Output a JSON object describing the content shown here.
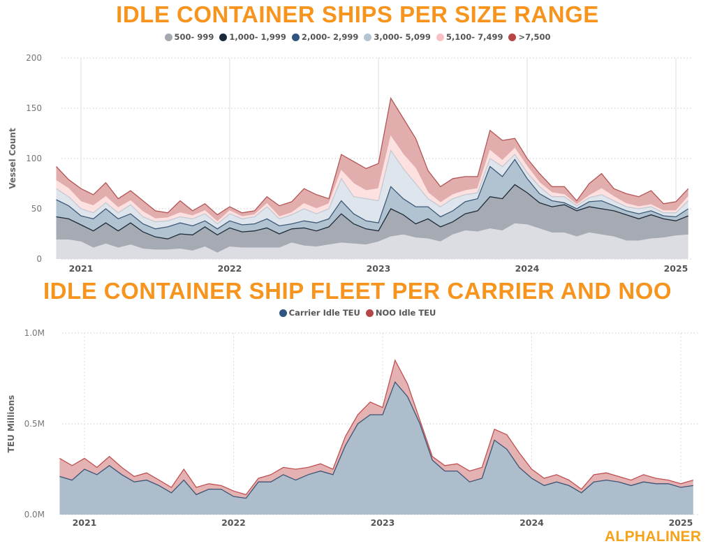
{
  "chart_data": [
    {
      "type": "area",
      "stacked": true,
      "title": "IDLE CONTAINER SHIPS PER SIZE RANGE",
      "xlabel": "",
      "ylabel": "Vessel Count",
      "ylim": [
        0,
        200
      ],
      "y_ticks": [
        "0",
        "50",
        "100",
        "150",
        "200"
      ],
      "y_tick_values": [
        0,
        50,
        100,
        150,
        200
      ],
      "x_ticks": [
        "2021",
        "2022",
        "2023",
        "2024",
        "2025"
      ],
      "grid": true,
      "legend_placement": "top",
      "x": [
        "2020-11",
        "2020-12",
        "2021-01",
        "2021-02",
        "2021-03",
        "2021-04",
        "2021-05",
        "2021-06",
        "2021-07",
        "2021-08",
        "2021-09",
        "2021-10",
        "2021-11",
        "2021-12",
        "2022-01",
        "2022-02",
        "2022-03",
        "2022-04",
        "2022-05",
        "2022-06",
        "2022-07",
        "2022-08",
        "2022-09",
        "2022-10",
        "2022-11",
        "2022-12",
        "2023-01",
        "2023-02",
        "2023-03",
        "2023-04",
        "2023-05",
        "2023-06",
        "2023-07",
        "2023-08",
        "2023-09",
        "2023-10",
        "2023-11",
        "2023-12",
        "2024-01",
        "2024-02",
        "2024-03",
        "2024-04",
        "2024-05",
        "2024-06",
        "2024-07",
        "2024-08",
        "2024-09",
        "2024-10",
        "2024-11",
        "2024-12",
        "2025-01",
        "2025-02"
      ],
      "series": [
        {
          "name": "500- 999",
          "color": "#a5a8b0",
          "fill": "#dcdde2",
          "line": "#dcdde2",
          "values": [
            19,
            19,
            17,
            11,
            15,
            11,
            14,
            10,
            9,
            9,
            10,
            8,
            12,
            6,
            12,
            11,
            11,
            11,
            11,
            16,
            13,
            12,
            14,
            16,
            15,
            14,
            17,
            22,
            24,
            21,
            20,
            17,
            24,
            28,
            27,
            30,
            28,
            35,
            34,
            30,
            26,
            26,
            22,
            26,
            24,
            22,
            18,
            18,
            20,
            21,
            23,
            24
          ]
        },
        {
          "name": "1,000- 1,999",
          "color": "#1b2a3a",
          "fill": "#a6aab3",
          "line": "#1d2b3a",
          "values": [
            23,
            21,
            17,
            17,
            21,
            17,
            22,
            17,
            13,
            11,
            15,
            16,
            20,
            18,
            19,
            16,
            17,
            20,
            14,
            14,
            18,
            16,
            18,
            29,
            20,
            16,
            11,
            28,
            20,
            14,
            20,
            15,
            13,
            17,
            21,
            32,
            32,
            39,
            32,
            26,
            26,
            28,
            26,
            26,
            26,
            26,
            26,
            22,
            24,
            19,
            15,
            19
          ]
        },
        {
          "name": "2,000- 2,999",
          "color": "#2f5580",
          "fill": "#b1c2d0",
          "line": "#3d5a78",
          "values": [
            17,
            13,
            9,
            12,
            14,
            12,
            9,
            8,
            8,
            12,
            11,
            9,
            6,
            6,
            7,
            7,
            7,
            9,
            8,
            5,
            7,
            8,
            8,
            13,
            10,
            8,
            8,
            22,
            16,
            17,
            12,
            10,
            11,
            12,
            12,
            30,
            22,
            25,
            14,
            9,
            6,
            2,
            2,
            5,
            8,
            5,
            4,
            5,
            4,
            3,
            4,
            7
          ]
        },
        {
          "name": "3,000- 5,099",
          "color": "#b4c4d3",
          "fill": "#dfe5ec",
          "line": "#c3cad3",
          "values": [
            11,
            9,
            7,
            6,
            6,
            6,
            9,
            7,
            7,
            6,
            6,
            7,
            7,
            5,
            7,
            6,
            7,
            12,
            7,
            9,
            12,
            9,
            10,
            22,
            17,
            22,
            22,
            36,
            30,
            23,
            8,
            10,
            12,
            7,
            6,
            8,
            10,
            5,
            6,
            7,
            4,
            6,
            3,
            4,
            6,
            5,
            4,
            5,
            4,
            3,
            4,
            8
          ]
        },
        {
          "name": "5,100- 7,499",
          "color": "#f8c0c2",
          "fill": "#fde0e0",
          "line": "#fde0e0",
          "values": [
            8,
            8,
            7,
            7,
            6,
            5,
            4,
            5,
            3,
            3,
            4,
            3,
            3,
            2,
            3,
            2,
            2,
            3,
            2,
            2,
            5,
            5,
            5,
            8,
            13,
            8,
            12,
            14,
            14,
            15,
            6,
            4,
            4,
            4,
            4,
            8,
            6,
            6,
            6,
            4,
            4,
            2,
            1,
            2,
            6,
            4,
            3,
            2,
            2,
            2,
            2,
            4
          ]
        },
        {
          "name": ">7,500",
          "color": "#b84545",
          "fill": "#e2adad",
          "line": "#b35555",
          "values": [
            14,
            9,
            13,
            11,
            14,
            9,
            10,
            11,
            8,
            5,
            12,
            5,
            7,
            7,
            4,
            4,
            4,
            7,
            11,
            11,
            15,
            14,
            5,
            16,
            22,
            22,
            25,
            38,
            36,
            30,
            22,
            16,
            16,
            14,
            12,
            20,
            20,
            10,
            8,
            9,
            6,
            8,
            4,
            12,
            15,
            8,
            10,
            10,
            14,
            7,
            9,
            8
          ]
        }
      ]
    },
    {
      "type": "area",
      "stacked": true,
      "title": "IDLE CONTAINER SHIP FLEET PER CARRIER AND NOO",
      "xlabel": "",
      "ylabel": "TEU Millions",
      "ylim": [
        0,
        1.0
      ],
      "y_ticks": [
        "0.0M",
        "0.5M",
        "1.0M"
      ],
      "y_tick_values": [
        0,
        0.5,
        1.0
      ],
      "x_ticks": [
        "2021",
        "2022",
        "2023",
        "2024",
        "2025"
      ],
      "grid": true,
      "legend_placement": "top",
      "x": [
        "2020-11",
        "2020-12",
        "2021-01",
        "2021-02",
        "2021-03",
        "2021-04",
        "2021-05",
        "2021-06",
        "2021-07",
        "2021-08",
        "2021-09",
        "2021-10",
        "2021-11",
        "2021-12",
        "2022-01",
        "2022-02",
        "2022-03",
        "2022-04",
        "2022-05",
        "2022-06",
        "2022-07",
        "2022-08",
        "2022-09",
        "2022-10",
        "2022-11",
        "2022-12",
        "2023-01",
        "2023-02",
        "2023-03",
        "2023-04",
        "2023-05",
        "2023-06",
        "2023-07",
        "2023-08",
        "2023-09",
        "2023-10",
        "2023-11",
        "2023-12",
        "2024-01",
        "2024-02",
        "2024-03",
        "2024-04",
        "2024-05",
        "2024-06",
        "2024-07",
        "2024-08",
        "2024-09",
        "2024-10",
        "2024-11",
        "2024-12",
        "2025-01",
        "2025-02"
      ],
      "series": [
        {
          "name": "Carrier Idle TEU",
          "color": "#2f5580",
          "fill": "#aebdcb",
          "line": "#3b5475",
          "values": [
            0.21,
            0.19,
            0.25,
            0.22,
            0.27,
            0.22,
            0.18,
            0.19,
            0.16,
            0.12,
            0.19,
            0.11,
            0.14,
            0.14,
            0.1,
            0.09,
            0.18,
            0.18,
            0.22,
            0.19,
            0.22,
            0.24,
            0.22,
            0.38,
            0.5,
            0.55,
            0.55,
            0.73,
            0.65,
            0.5,
            0.3,
            0.24,
            0.24,
            0.18,
            0.2,
            0.41,
            0.36,
            0.26,
            0.2,
            0.16,
            0.18,
            0.16,
            0.12,
            0.18,
            0.19,
            0.18,
            0.16,
            0.18,
            0.17,
            0.17,
            0.15,
            0.16
          ]
        },
        {
          "name": "NOO Idle TEU",
          "color": "#b84545",
          "fill": "#e4b2b2",
          "line": "#c05050",
          "values": [
            0.1,
            0.08,
            0.06,
            0.04,
            0.05,
            0.04,
            0.03,
            0.04,
            0.03,
            0.03,
            0.06,
            0.04,
            0.03,
            0.02,
            0.03,
            0.02,
            0.02,
            0.04,
            0.04,
            0.06,
            0.04,
            0.04,
            0.03,
            0.05,
            0.05,
            0.07,
            0.04,
            0.12,
            0.07,
            0.02,
            0.02,
            0.03,
            0.04,
            0.06,
            0.06,
            0.06,
            0.08,
            0.08,
            0.05,
            0.04,
            0.04,
            0.03,
            0.02,
            0.04,
            0.04,
            0.03,
            0.03,
            0.04,
            0.03,
            0.02,
            0.02,
            0.03
          ]
        }
      ]
    }
  ],
  "logo": "ALPHALINER"
}
